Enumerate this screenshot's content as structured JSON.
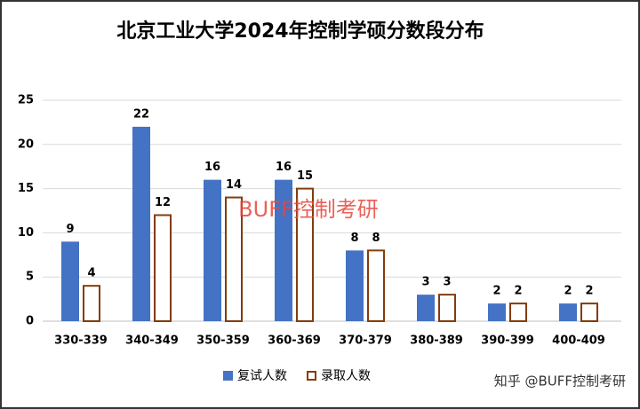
{
  "chart_data": {
    "type": "bar",
    "title": "北京工业大学2024年控制学硕分数段分布",
    "categories": [
      "330-339",
      "340-349",
      "350-359",
      "360-369",
      "370-379",
      "380-389",
      "390-399",
      "400-409"
    ],
    "series": [
      {
        "name": "复试人数",
        "color": "#4472c4",
        "values": [
          9,
          22,
          16,
          16,
          8,
          3,
          2,
          2
        ]
      },
      {
        "name": "录取人数",
        "color": "#843c0c",
        "values": [
          4,
          12,
          14,
          15,
          8,
          3,
          2,
          2
        ]
      }
    ],
    "ylim": [
      0,
      25
    ],
    "yticks": [
      0,
      5,
      10,
      15,
      20,
      25
    ],
    "grid": true,
    "annotations": [
      "BUFF控制考研",
      "知乎 @BUFF控制考研"
    ]
  }
}
